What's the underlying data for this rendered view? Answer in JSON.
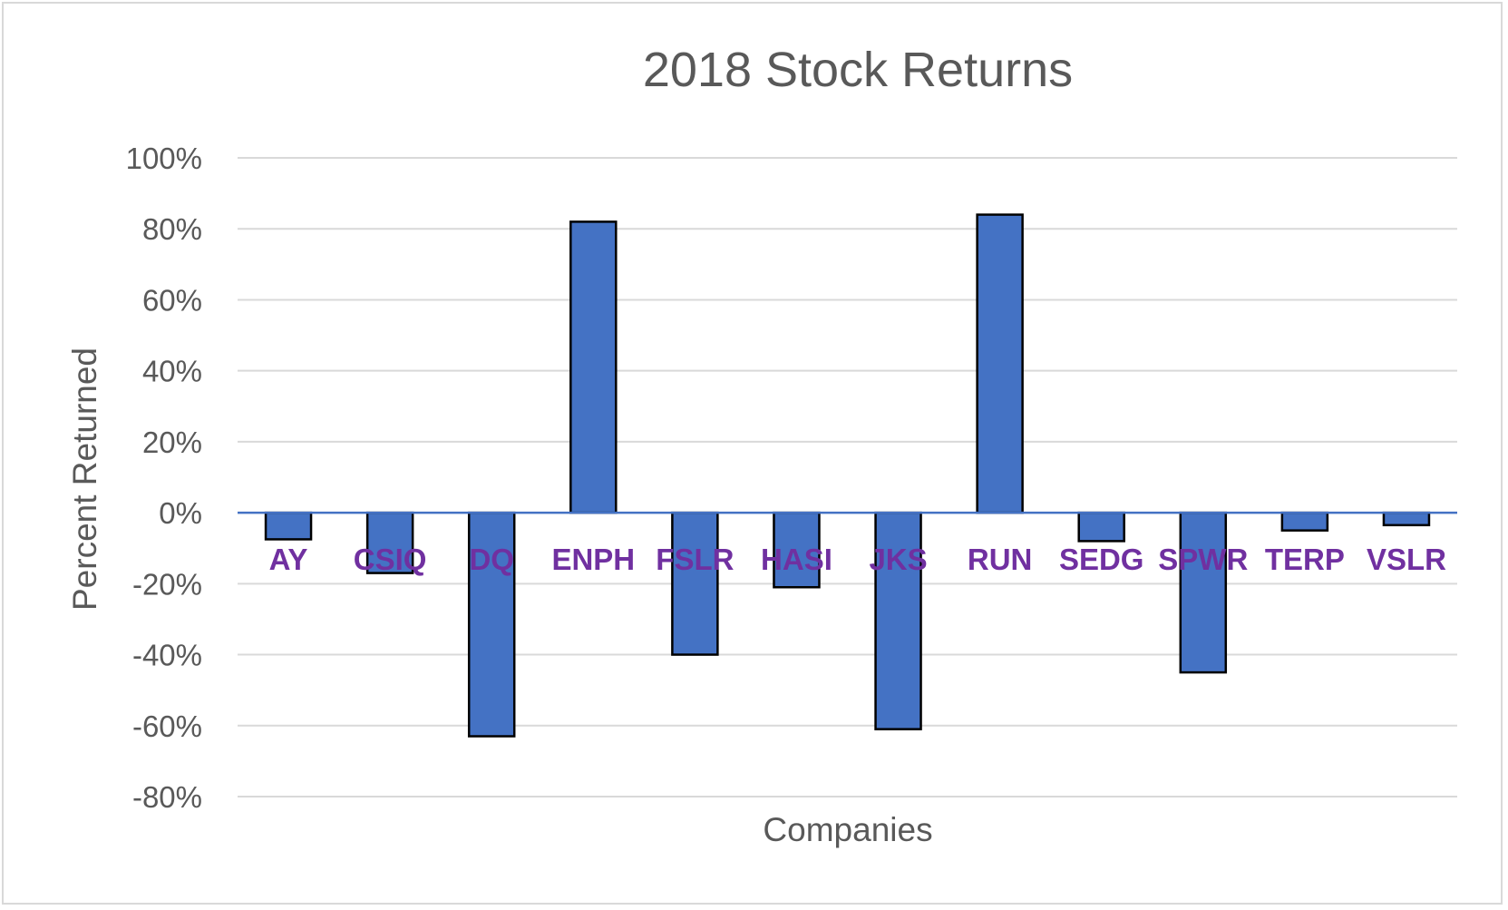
{
  "chart_data": {
    "type": "bar",
    "title": "2018 Stock Returns",
    "xlabel": "Companies",
    "ylabel": "Percent Returned",
    "categories": [
      "AY",
      "CSIQ",
      "DQ",
      "ENPH",
      "FSLR",
      "HASI",
      "JKS",
      "RUN",
      "SEDG",
      "SPWR",
      "TERP",
      "VSLR"
    ],
    "values": [
      -7.5,
      -17,
      -63,
      82,
      -40,
      -21,
      -61,
      84,
      -8,
      -45,
      -5,
      -3.5
    ],
    "value_unit": "%",
    "ylim": [
      -80,
      100
    ],
    "yticks": [
      "100%",
      "80%",
      "60%",
      "40%",
      "20%",
      "0%",
      "-20%",
      "-40%",
      "-60%",
      "-80%"
    ],
    "ytick_values": [
      100,
      80,
      60,
      40,
      20,
      0,
      -20,
      -40,
      -60,
      -80
    ],
    "grid": true,
    "legend": "none",
    "category_label_position": "below zero line",
    "colors": {
      "bar_fill": "#4472c4",
      "bar_stroke": "#000000",
      "category_label": "#7030a0",
      "gridline": "#d9d9d9",
      "zero_line": "#4472c4",
      "text": "#595959"
    }
  }
}
